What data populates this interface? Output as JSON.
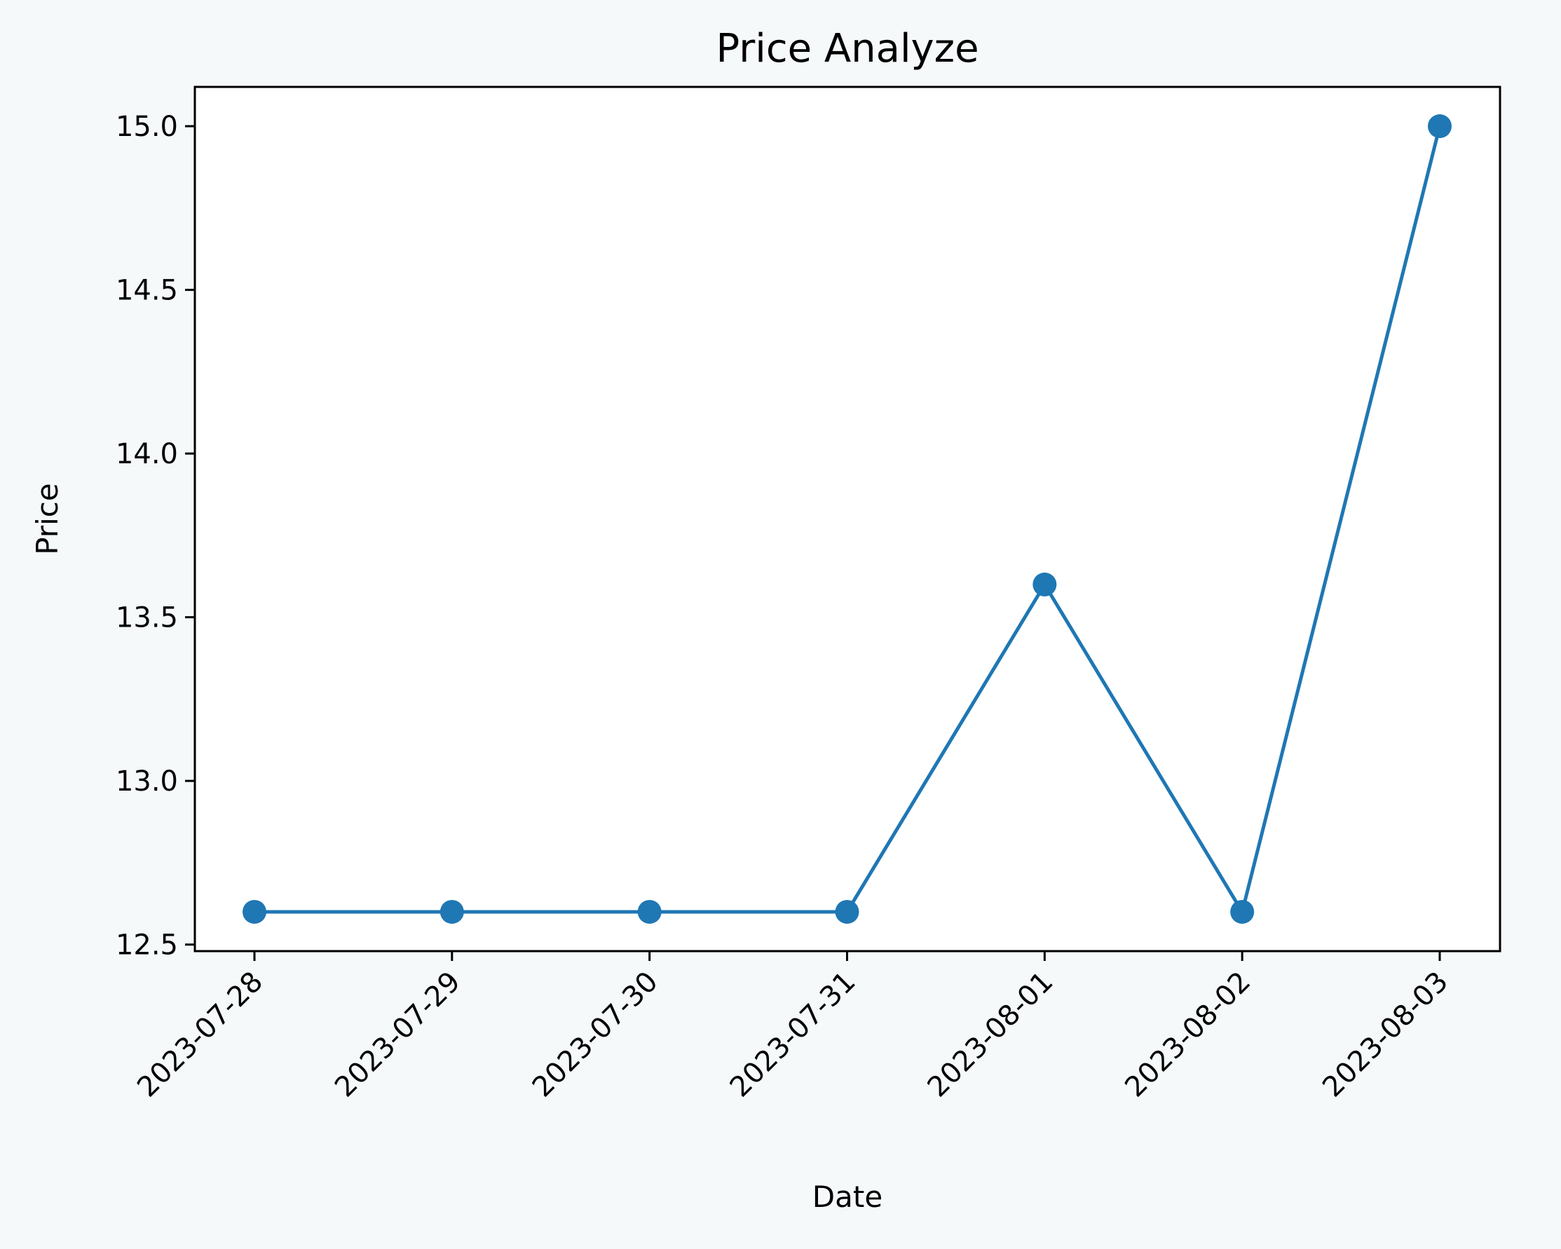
{
  "chart_data": {
    "type": "line",
    "title": "Price Analyze",
    "xlabel": "Date",
    "ylabel": "Price",
    "x": [
      "2023-07-28",
      "2023-07-29",
      "2023-07-30",
      "2023-07-31",
      "2023-08-01",
      "2023-08-02",
      "2023-08-03"
    ],
    "series": [
      {
        "values": [
          12.6,
          12.6,
          12.6,
          12.6,
          13.6,
          12.6,
          15.0
        ],
        "color": "#1f77b4",
        "marker": "circle"
      }
    ],
    "ylim": [
      12.48,
      15.12
    ],
    "yticks": [
      "12.5",
      "13.0",
      "13.5",
      "14.0",
      "14.5",
      "15.0"
    ],
    "grid": false,
    "legend": "none",
    "background": "#f5f9fa",
    "plot_background": "#ffffff"
  }
}
